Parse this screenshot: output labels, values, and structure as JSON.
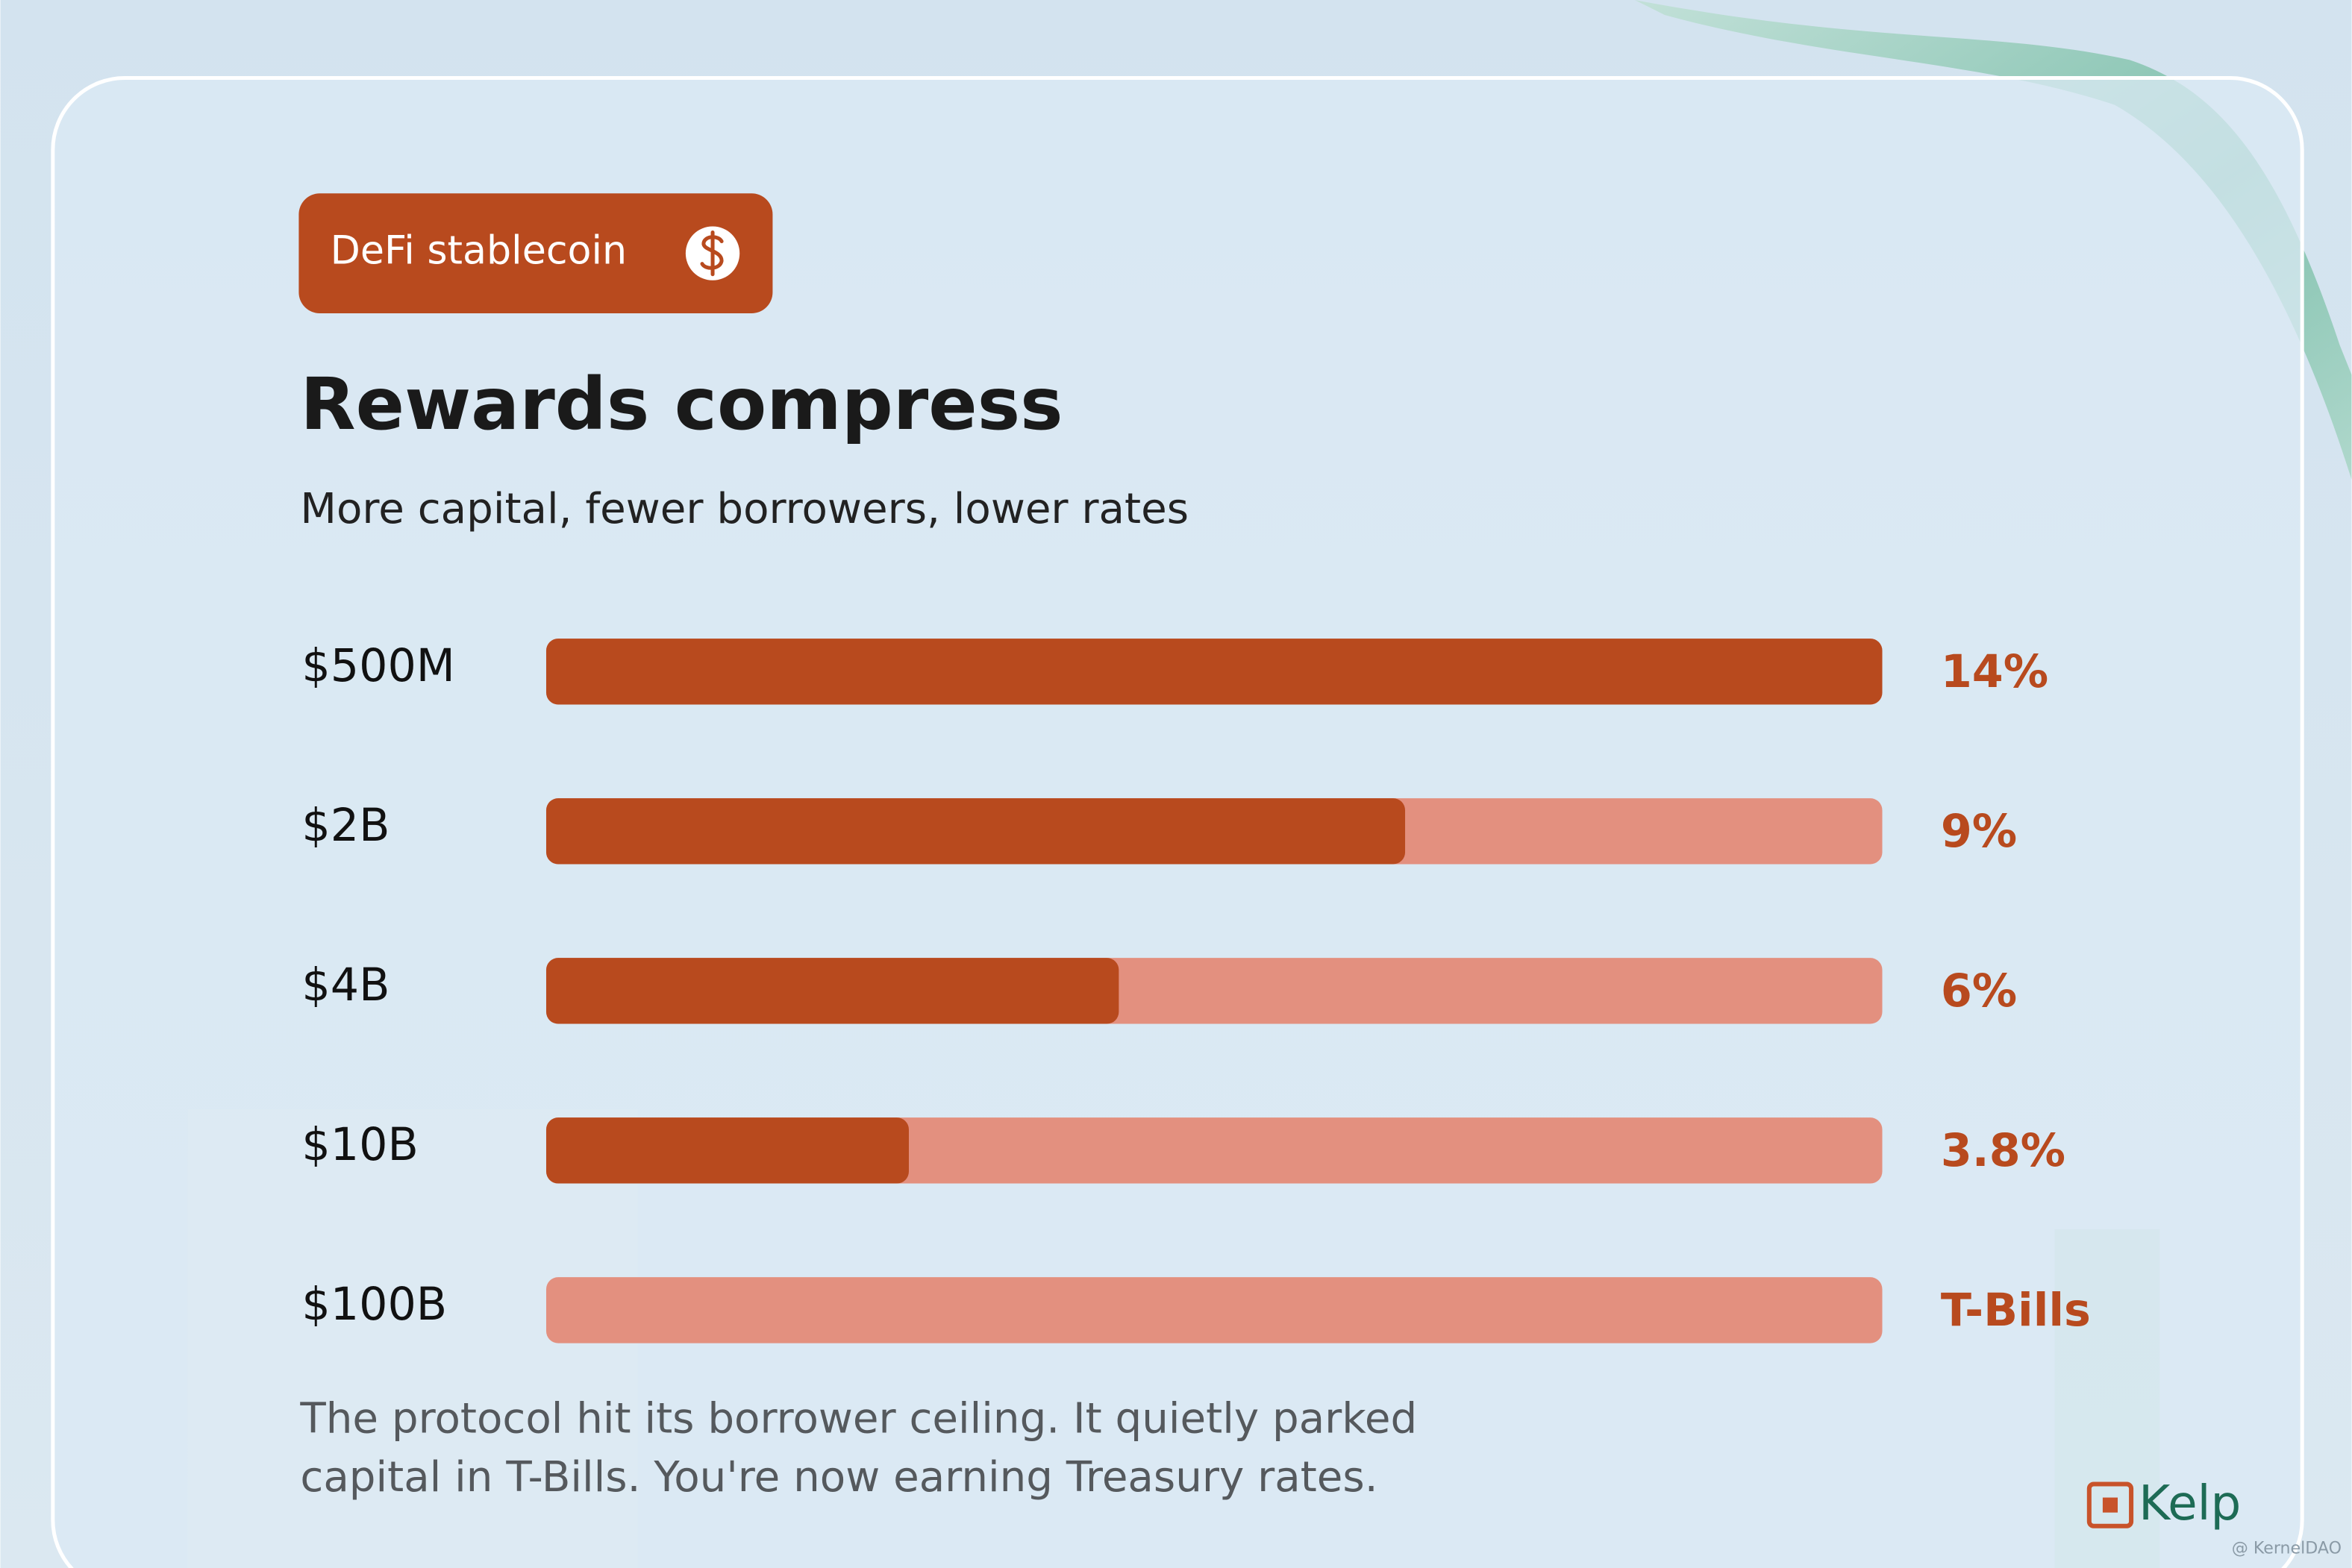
{
  "chart_data": {
    "type": "hbar",
    "badge": "DeFi stablecoin",
    "title": "Rewards compress",
    "subtitle": "More capital, fewer borrowers, lower rates",
    "categories": [
      "$500M",
      "$2B",
      "$4B",
      "$10B",
      "$100B"
    ],
    "values": [
      14,
      9,
      6,
      3.8,
      null
    ],
    "value_labels": [
      "14%",
      "9%",
      "6%",
      "3.8%",
      "T-Bills"
    ],
    "xlim": [
      0,
      14
    ],
    "color": "#b84a1e",
    "track_color": "#e3907f",
    "note_lines": [
      "The protocol hit its borrower ceiling. It quietly parked",
      "capital in T-Bills. You're now earning Treasury rates."
    ]
  },
  "logo": "Kelp",
  "watermark": "@ KernelDAO"
}
